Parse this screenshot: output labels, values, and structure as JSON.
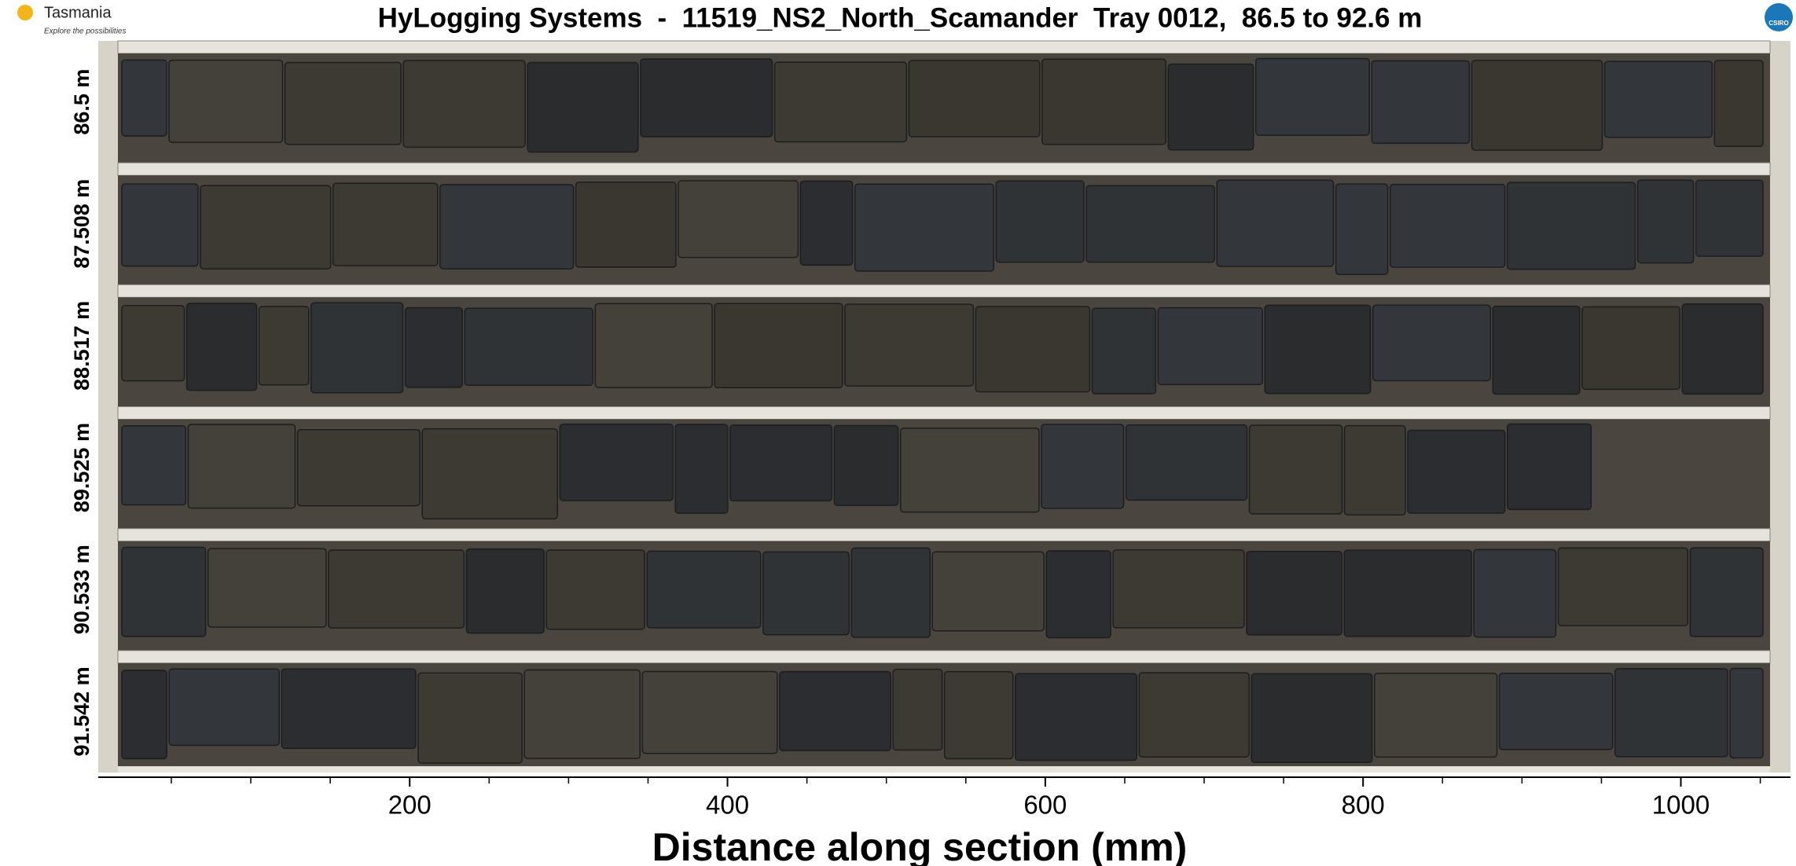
{
  "header": {
    "title": "HyLogging Systems  -  11519_NS2_North_Scamander  Tray 0012,  86.5 to 92.6 m",
    "logo_left": "Tasmania",
    "logo_left_tagline": "Explore the possibilities",
    "logo_right": "CSIRO"
  },
  "tray": {
    "row_labels": [
      "86.5 m",
      "87.508 m",
      "88.517 m",
      "89.525 m",
      "90.533 m",
      "91.542 m"
    ]
  },
  "x_axis": {
    "label": "Distance along section (mm)",
    "xlim": [
      4,
      1069
    ],
    "xticks": [
      200,
      400,
      600,
      800,
      1000
    ],
    "minor_xticks": [
      50,
      100,
      150,
      250,
      300,
      350,
      450,
      500,
      550,
      650,
      700,
      750,
      850,
      900,
      950,
      1050
    ]
  }
}
